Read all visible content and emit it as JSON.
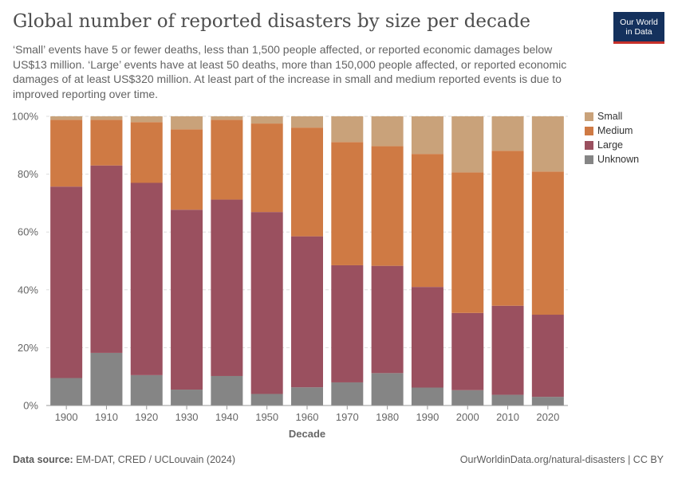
{
  "header": {
    "title": "Global number of reported disasters by size per decade",
    "subtitle": "‘Small’ events have 5 or fewer deaths, less than 1,500 people affected, or reported economic damages below US$13 million. ‘Large’ events have at least 50 deaths, more than 150,000 people affected, or reported economic damages of at least US$320 million. At least part of the increase in small and medium reported events is due to improved reporting over time.",
    "logo_line1": "Our World",
    "logo_line2": "in Data"
  },
  "footer": {
    "source_label": "Data source:",
    "source_text": "EM-DAT, CRED / UCLouvain (2024)",
    "url_text": "OurWorldinData.org/natural-disasters | CC BY"
  },
  "chart_data": {
    "type": "bar",
    "stacked": true,
    "normalized": "percent",
    "categories": [
      "1900",
      "1910",
      "1920",
      "1930",
      "1940",
      "1950",
      "1960",
      "1970",
      "1980",
      "1990",
      "2000",
      "2010",
      "2020"
    ],
    "series": [
      {
        "name": "Unknown",
        "color": "#858585",
        "values": [
          9.5,
          18.2,
          10.5,
          5.5,
          10.2,
          4.0,
          6.3,
          8.0,
          11.2,
          6.2,
          5.3,
          3.7,
          3.0
        ]
      },
      {
        "name": "Large",
        "color": "#9a505f",
        "values": [
          66.2,
          64.8,
          66.5,
          62.2,
          61.0,
          62.9,
          52.2,
          40.5,
          37.1,
          34.8,
          26.7,
          30.8,
          28.4
        ]
      },
      {
        "name": "Medium",
        "color": "#cf7a44",
        "values": [
          23.1,
          15.8,
          21.0,
          27.8,
          27.6,
          30.6,
          37.6,
          42.6,
          41.4,
          46.0,
          48.6,
          53.6,
          49.5
        ]
      },
      {
        "name": "Small",
        "color": "#c9a27a",
        "values": [
          1.2,
          1.2,
          2.0,
          4.5,
          1.2,
          2.5,
          3.9,
          8.9,
          10.3,
          13.0,
          19.4,
          11.9,
          19.1
        ]
      }
    ],
    "xlabel": "Decade",
    "ylabel": "",
    "ylim": [
      0,
      100
    ],
    "y_ticks": [
      "0%",
      "20%",
      "40%",
      "60%",
      "80%",
      "100%"
    ],
    "grid": "horizontal dashed",
    "legend": {
      "position": "right",
      "order": [
        "Small",
        "Medium",
        "Large",
        "Unknown"
      ]
    }
  }
}
